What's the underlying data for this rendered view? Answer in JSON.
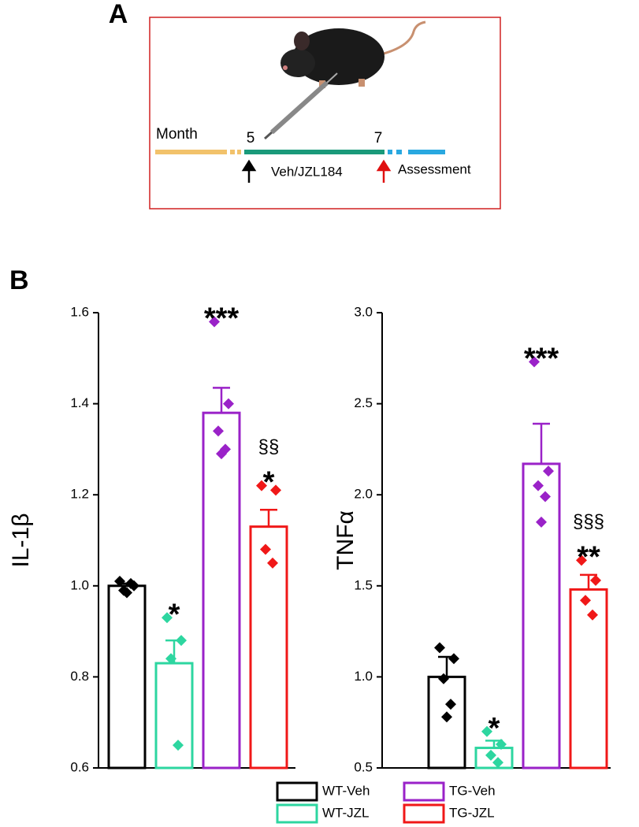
{
  "panel_a": {
    "label": "A",
    "month": "Month",
    "start": "5",
    "end": "7",
    "treatment": "Veh/JZL184",
    "assessment": "Assessment"
  },
  "panel_b": {
    "label": "B"
  },
  "chart_data": [
    {
      "type": "bar",
      "y_label": "IL-1β",
      "categories": [
        "WT-Veh",
        "WT-JZL",
        "TG-Veh",
        "TG-JZL"
      ],
      "colors": [
        "#000000",
        "#2dd6a0",
        "#9a22c8",
        "#f01818"
      ],
      "values": [
        1.0,
        0.83,
        1.38,
        1.13
      ],
      "errors": [
        0.005,
        0.05,
        0.055,
        0.037
      ],
      "points": [
        [
          1.01,
          1.0,
          0.99,
          1.005,
          0.985
        ],
        [
          0.93,
          0.88,
          0.84,
          0.65
        ],
        [
          1.58,
          1.4,
          1.34,
          1.3,
          1.29
        ],
        [
          1.22,
          1.21,
          1.08,
          1.05
        ]
      ],
      "annotations": [
        null,
        [
          "*"
        ],
        [
          "***"
        ],
        [
          "§§",
          "*"
        ]
      ],
      "ylim": [
        0.6,
        1.6
      ],
      "yticks": [
        0.6,
        0.8,
        {
          "value": 1,
          "label": "1.0"
        },
        1.2,
        1.4,
        1.6
      ]
    },
    {
      "type": "bar",
      "y_label": "TNFα",
      "colors": [
        "#000000",
        "#2dd6a0",
        "#9a22c8",
        "#f01818"
      ],
      "values": [
        1.0,
        0.61,
        2.17,
        1.48
      ],
      "errors": [
        0.11,
        0.04,
        0.22,
        0.08
      ],
      "points": [
        [
          1.16,
          1.1,
          0.99,
          0.85,
          0.78
        ],
        [
          0.7,
          0.63,
          0.57,
          0.53
        ],
        [
          2.73,
          2.13,
          2.05,
          1.99,
          1.85
        ],
        [
          1.64,
          1.53,
          1.42,
          1.34
        ]
      ],
      "annotations": [
        null,
        [
          "*"
        ],
        [
          "***"
        ],
        [
          "§§§",
          "**"
        ]
      ],
      "ylim": [
        0.5,
        3.0
      ],
      "yticks": [
        0.5,
        {
          "value": 1,
          "label": "1.0"
        },
        1.5,
        {
          "value": 2,
          "label": "2.0"
        },
        2.5,
        {
          "value": 3,
          "label": "3.0"
        }
      ]
    }
  ]
}
